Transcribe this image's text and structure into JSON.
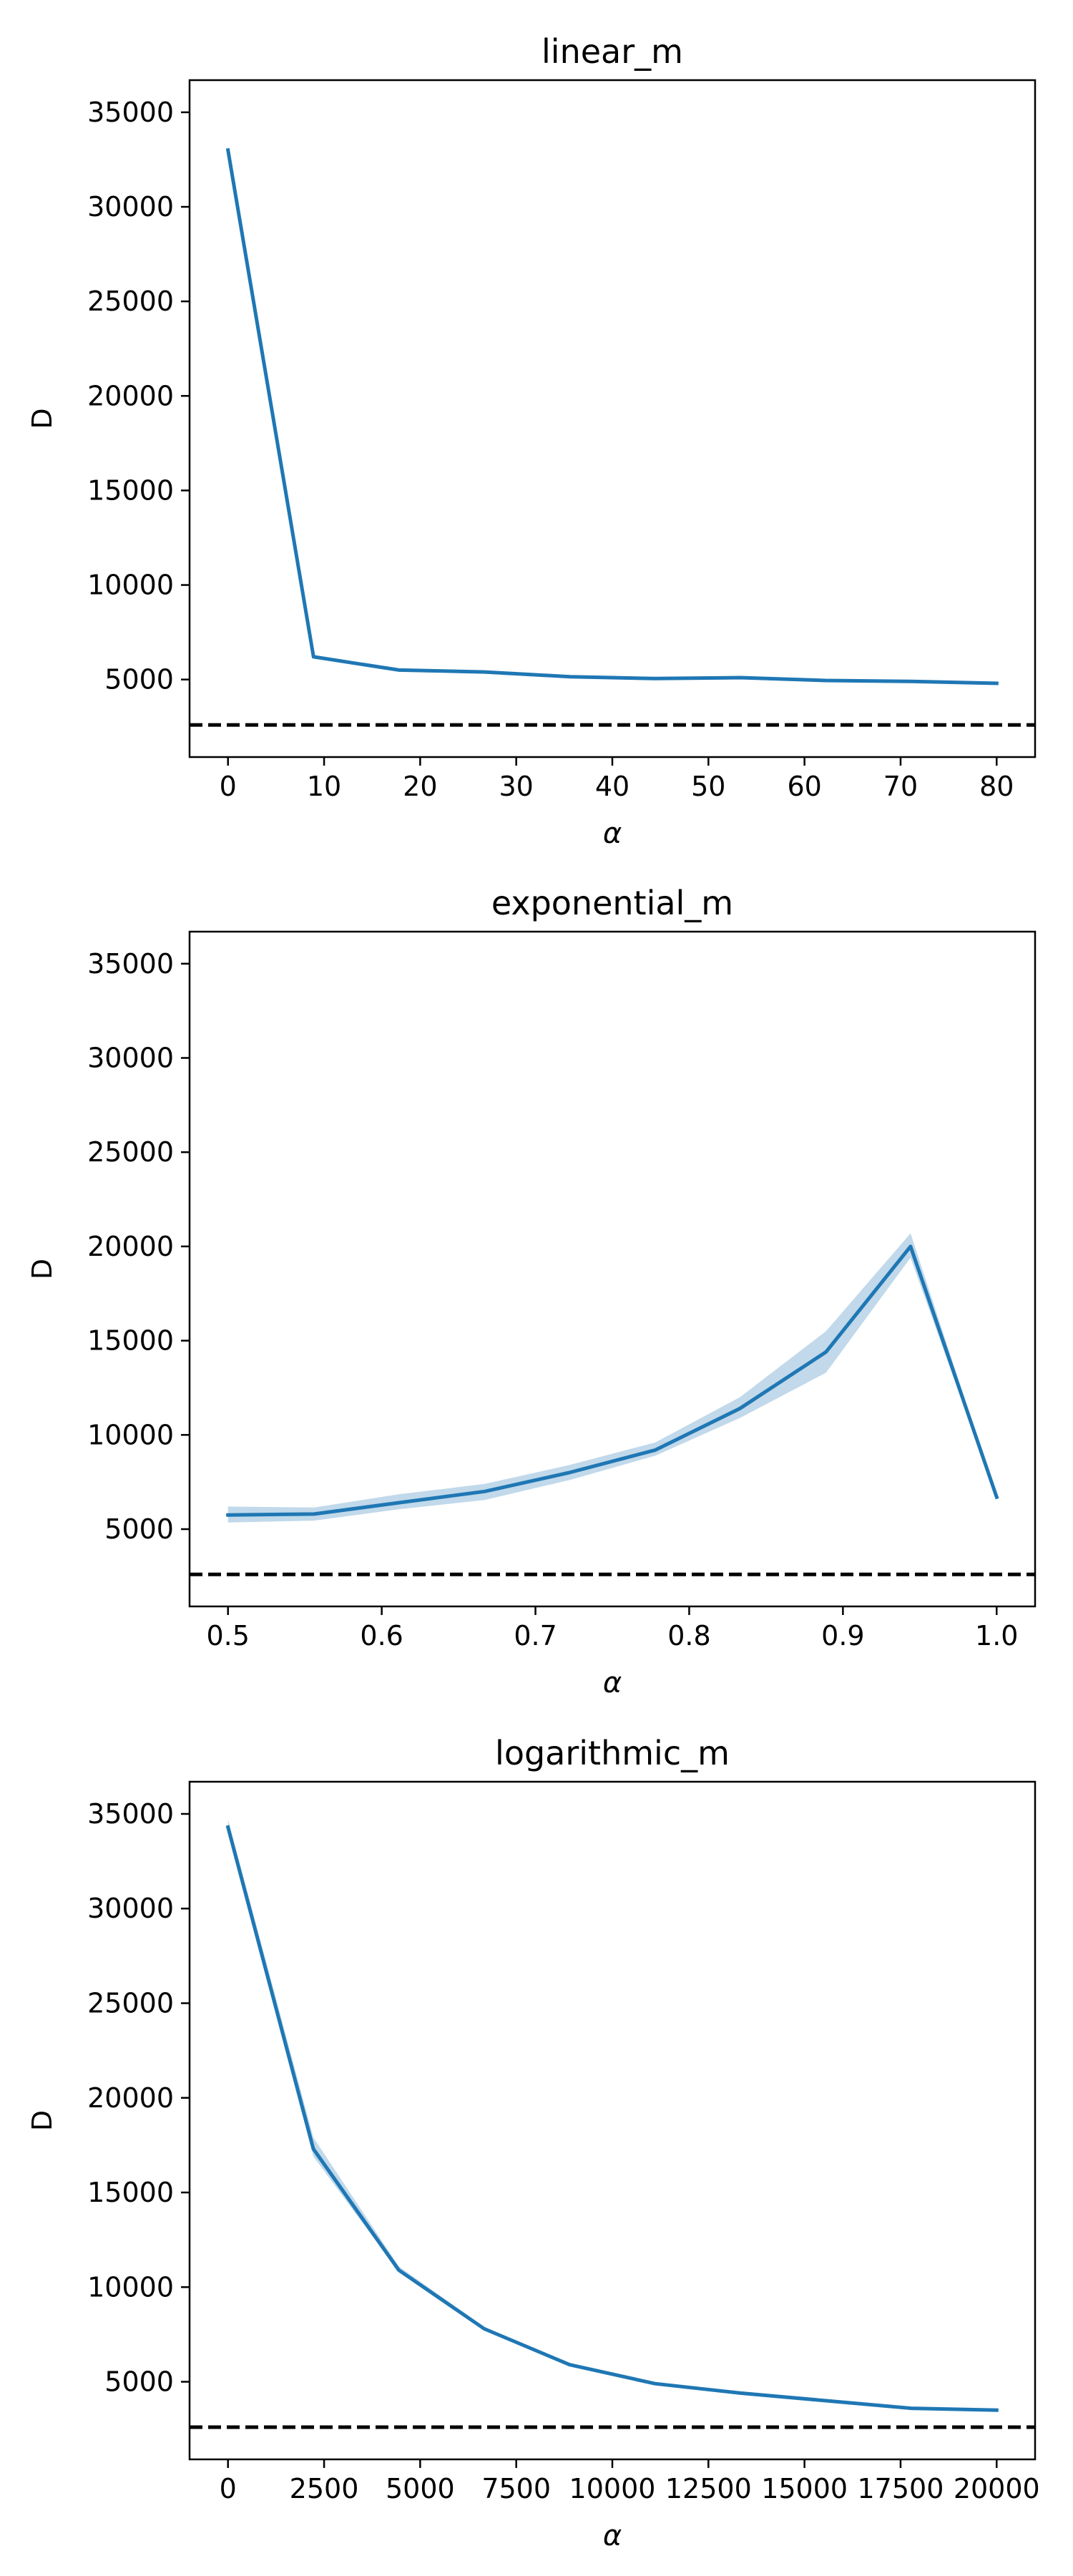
{
  "chart_data": [
    {
      "type": "line",
      "title": "linear_m",
      "xlabel": "α",
      "ylabel": "D",
      "x_ticks": [
        0,
        10,
        20,
        30,
        40,
        50,
        60,
        70,
        80
      ],
      "y_ticks": [
        5000,
        10000,
        15000,
        20000,
        25000,
        30000,
        35000
      ],
      "x_tick_labels": [
        "0",
        "10",
        "20",
        "30",
        "40",
        "50",
        "60",
        "70",
        "80"
      ],
      "y_tick_labels": [
        "5000",
        "10000",
        "15000",
        "20000",
        "25000",
        "30000",
        "35000"
      ],
      "xlim": [
        -4,
        84
      ],
      "ylim": [
        900,
        36700
      ],
      "grid": false,
      "series": [
        {
          "color": "#1f77b4",
          "x": [
            0,
            8.9,
            17.8,
            26.7,
            35.6,
            44.4,
            53.3,
            62.2,
            71.1,
            80
          ],
          "values": [
            33000,
            6200,
            5500,
            5400,
            5150,
            5050,
            5100,
            4950,
            4900,
            4800
          ],
          "ci_lower": [
            32900,
            6150,
            5450,
            5350,
            5100,
            5000,
            5050,
            4900,
            4850,
            4750
          ],
          "ci_upper": [
            33100,
            6250,
            5550,
            5450,
            5200,
            5100,
            5150,
            5000,
            4950,
            4850
          ]
        }
      ],
      "reference_line": {
        "y": 2600,
        "style": "dashed",
        "color": "#000000"
      }
    },
    {
      "type": "line",
      "title": "exponential_m",
      "xlabel": "α",
      "ylabel": "D",
      "x_ticks": [
        0.5,
        0.6,
        0.7,
        0.8,
        0.9,
        1.0
      ],
      "y_ticks": [
        5000,
        10000,
        15000,
        20000,
        25000,
        30000,
        35000
      ],
      "x_tick_labels": [
        "0.5",
        "0.6",
        "0.7",
        "0.8",
        "0.9",
        "1.0"
      ],
      "y_tick_labels": [
        "5000",
        "10000",
        "15000",
        "20000",
        "25000",
        "30000",
        "35000"
      ],
      "xlim": [
        0.475,
        1.025
      ],
      "ylim": [
        900,
        36700
      ],
      "grid": false,
      "series": [
        {
          "color": "#1f77b4",
          "x": [
            0.5,
            0.556,
            0.611,
            0.667,
            0.722,
            0.778,
            0.833,
            0.889,
            0.944,
            1.0
          ],
          "values": [
            5750,
            5800,
            6400,
            7000,
            8000,
            9200,
            11400,
            14400,
            20000,
            6700
          ],
          "ci_lower": [
            5350,
            5450,
            6050,
            6550,
            7600,
            8900,
            10900,
            13300,
            19400,
            6650
          ],
          "ci_upper": [
            6200,
            6150,
            6850,
            7400,
            8400,
            9600,
            12000,
            15500,
            20700,
            6750
          ]
        }
      ],
      "reference_line": {
        "y": 2600,
        "style": "dashed",
        "color": "#000000"
      }
    },
    {
      "type": "line",
      "title": "logarithmic_m",
      "xlabel": "α",
      "ylabel": "D",
      "x_ticks": [
        0,
        2500,
        5000,
        7500,
        10000,
        12500,
        15000,
        17500,
        20000
      ],
      "y_ticks": [
        5000,
        10000,
        15000,
        20000,
        25000,
        30000,
        35000
      ],
      "x_tick_labels": [
        "0",
        "2500",
        "5000",
        "7500",
        "10000",
        "12500",
        "15000",
        "17500",
        "20000"
      ],
      "y_tick_labels": [
        "5000",
        "10000",
        "15000",
        "20000",
        "25000",
        "30000",
        "35000"
      ],
      "xlim": [
        -1000,
        21000
      ],
      "ylim": [
        900,
        36700
      ],
      "grid": false,
      "series": [
        {
          "color": "#1f77b4",
          "x": [
            0,
            2222,
            4444,
            6667,
            8889,
            11111,
            13333,
            15556,
            17778,
            20000
          ],
          "values": [
            34300,
            17300,
            10900,
            7800,
            5900,
            4900,
            4400,
            4000,
            3600,
            3500
          ],
          "ci_lower": [
            34000,
            16900,
            10800,
            7750,
            5850,
            4850,
            4350,
            3950,
            3550,
            3450
          ],
          "ci_upper": [
            34700,
            17900,
            11100,
            7900,
            5950,
            4950,
            4450,
            4050,
            3650,
            3550
          ]
        }
      ],
      "reference_line": {
        "y": 2600,
        "style": "dashed",
        "color": "#000000"
      }
    }
  ]
}
